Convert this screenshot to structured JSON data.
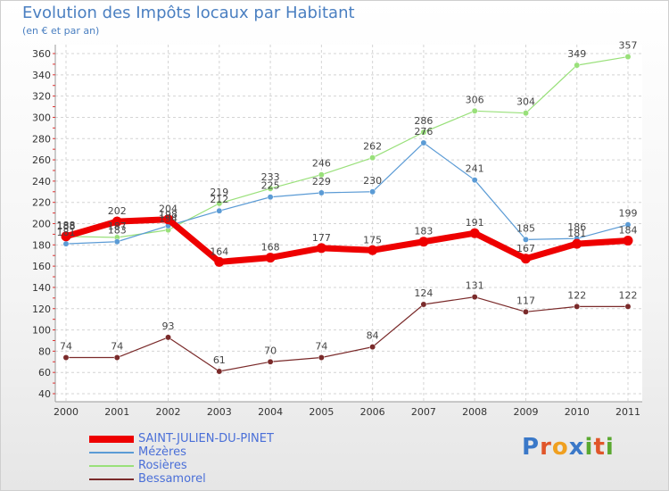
{
  "header": {
    "title": "Evolution des Impôts locaux par Habitant",
    "subtitle": "(en € et par an)"
  },
  "logo": {
    "text": "Proxiti",
    "letters": [
      "P",
      "r",
      "o",
      "x",
      "i",
      "t",
      "i"
    ],
    "colors": [
      "#3a78c8",
      "#e0562a",
      "#f0a020",
      "#3a78c8",
      "#5aa830",
      "#e0562a",
      "#5aa830"
    ]
  },
  "chart_data": {
    "type": "line",
    "title": "Evolution des Impôts locaux par Habitant",
    "subtitle": "(en € et par an)",
    "xlabel": "",
    "ylabel": "",
    "x": [
      "2000",
      "2001",
      "2002",
      "2003",
      "2004",
      "2005",
      "2006",
      "2007",
      "2008",
      "2009",
      "2010",
      "2011"
    ],
    "ylim": [
      40,
      360
    ],
    "yticks": [
      40,
      60,
      80,
      100,
      120,
      140,
      160,
      180,
      200,
      220,
      240,
      260,
      280,
      300,
      320,
      340,
      360
    ],
    "grid": true,
    "legend_position": "bottom-left",
    "series": [
      {
        "name": "SAINT-JULIEN-DU-PINET",
        "color": "#ee0000",
        "values": [
          188,
          202,
          204,
          164,
          168,
          177,
          175,
          183,
          191,
          167,
          181,
          184
        ]
      },
      {
        "name": "Mézères",
        "color": "#5b9bd5",
        "values": [
          181,
          183,
          198,
          212,
          225,
          229,
          230,
          276,
          241,
          185,
          186,
          199
        ]
      },
      {
        "name": "Rosières",
        "color": "#99e07a",
        "values": [
          188,
          187,
          194,
          219,
          233,
          246,
          262,
          286,
          306,
          304,
          349,
          357
        ]
      },
      {
        "name": "Bessamorel",
        "color": "#7a2a2a",
        "values": [
          74,
          74,
          93,
          61,
          70,
          74,
          84,
          124,
          131,
          117,
          122,
          122
        ]
      }
    ]
  }
}
